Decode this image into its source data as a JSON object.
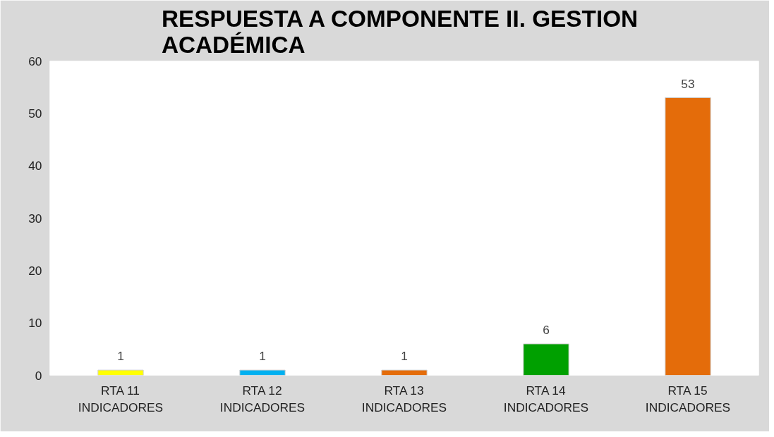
{
  "chart_data": {
    "type": "bar",
    "title": "RESPUESTA A COMPONENTE II.  GESTION ACADÉMICA",
    "categories": [
      "RTA 11 INDICADORES",
      "RTA 12 INDICADORES",
      "RTA 13 INDICADORES",
      "RTA 14 INDICADORES",
      "RTA 15 INDICADORES"
    ],
    "values": [
      1,
      1,
      1,
      6,
      53
    ],
    "colors": [
      "#ffff00",
      "#00b0f0",
      "#e46c0a",
      "#00a000",
      "#e46c0a"
    ],
    "ylim": [
      0,
      60
    ],
    "yticks": [
      0,
      10,
      20,
      30,
      40,
      50,
      60
    ],
    "data_labels": true,
    "grid": false
  }
}
